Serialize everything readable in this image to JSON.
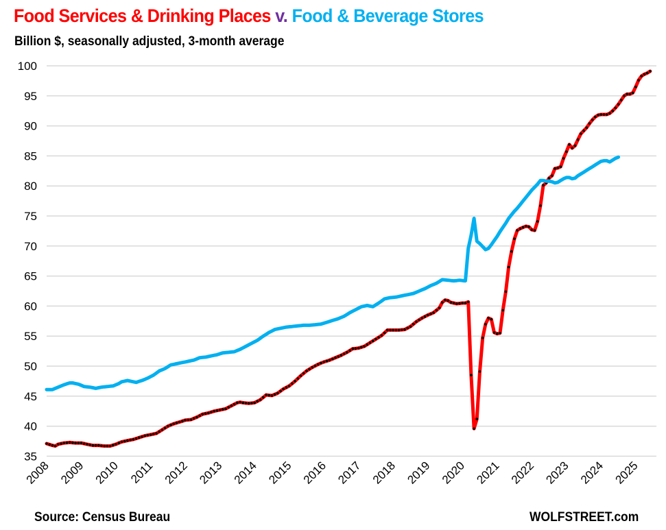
{
  "chart_data": {
    "type": "line",
    "title_parts": [
      {
        "text": "Food Services & Drinking Places",
        "color": "#ff0000"
      },
      {
        "text": " v. ",
        "color": "#7030a0"
      },
      {
        "text": "Food & Beverage Stores",
        "color": "#00b0f0"
      }
    ],
    "subtitle": "Billion $, seasonally adjusted, 3-month average",
    "xlabel": "",
    "ylabel": "",
    "ylim": [
      35,
      100
    ],
    "yticks": [
      35,
      40,
      45,
      50,
      55,
      60,
      65,
      70,
      75,
      80,
      85,
      90,
      95,
      100
    ],
    "xticks": [
      "2008",
      "2009",
      "2010",
      "2011",
      "2012",
      "2013",
      "2014",
      "2015",
      "2016",
      "2017",
      "2018",
      "2019",
      "2020",
      "2021",
      "2022",
      "2023",
      "2024",
      "2025"
    ],
    "x_start": "2008-01",
    "frequency": "monthly",
    "grid": true,
    "legend": "none (series identified by title colors)",
    "series": [
      {
        "name": "Food Services & Drinking Places",
        "color": "#ff0000",
        "marker_color": "#000000",
        "anchors": [
          [
            0,
            37.1
          ],
          [
            2,
            36.8
          ],
          [
            3,
            36.7
          ],
          [
            4,
            37.0
          ],
          [
            6,
            37.2
          ],
          [
            8,
            37.3
          ],
          [
            10,
            37.2
          ],
          [
            12,
            37.2
          ],
          [
            14,
            37.0
          ],
          [
            16,
            36.8
          ],
          [
            18,
            36.8
          ],
          [
            20,
            36.7
          ],
          [
            22,
            36.7
          ],
          [
            24,
            37.0
          ],
          [
            26,
            37.4
          ],
          [
            28,
            37.6
          ],
          [
            30,
            37.8
          ],
          [
            32,
            38.1
          ],
          [
            34,
            38.4
          ],
          [
            36,
            38.6
          ],
          [
            38,
            38.8
          ],
          [
            40,
            39.4
          ],
          [
            42,
            40.0
          ],
          [
            44,
            40.4
          ],
          [
            46,
            40.7
          ],
          [
            48,
            41.0
          ],
          [
            50,
            41.1
          ],
          [
            52,
            41.5
          ],
          [
            54,
            42.0
          ],
          [
            56,
            42.2
          ],
          [
            58,
            42.5
          ],
          [
            60,
            42.7
          ],
          [
            62,
            42.9
          ],
          [
            64,
            43.4
          ],
          [
            66,
            43.9
          ],
          [
            67,
            44.0
          ],
          [
            68,
            43.9
          ],
          [
            70,
            43.8
          ],
          [
            72,
            43.9
          ],
          [
            74,
            44.4
          ],
          [
            76,
            45.2
          ],
          [
            78,
            45.1
          ],
          [
            80,
            45.5
          ],
          [
            82,
            46.2
          ],
          [
            84,
            46.7
          ],
          [
            86,
            47.5
          ],
          [
            88,
            48.4
          ],
          [
            90,
            49.2
          ],
          [
            92,
            49.8
          ],
          [
            94,
            50.3
          ],
          [
            96,
            50.7
          ],
          [
            98,
            51.0
          ],
          [
            100,
            51.4
          ],
          [
            102,
            51.8
          ],
          [
            104,
            52.3
          ],
          [
            106,
            52.9
          ],
          [
            108,
            53.0
          ],
          [
            110,
            53.3
          ],
          [
            112,
            53.9
          ],
          [
            114,
            54.5
          ],
          [
            116,
            55.1
          ],
          [
            118,
            56.0
          ],
          [
            120,
            56.0
          ],
          [
            122,
            56.0
          ],
          [
            124,
            56.1
          ],
          [
            126,
            56.6
          ],
          [
            128,
            57.4
          ],
          [
            130,
            58.0
          ],
          [
            132,
            58.5
          ],
          [
            134,
            58.9
          ],
          [
            136,
            59.7
          ],
          [
            137,
            60.6
          ],
          [
            138,
            61.0
          ],
          [
            139,
            60.9
          ],
          [
            140,
            60.6
          ],
          [
            142,
            60.4
          ],
          [
            144,
            60.5
          ],
          [
            146,
            61.0
          ],
          [
            148,
            62.0
          ],
          [
            150,
            62.9
          ],
          [
            152,
            63.8
          ],
          [
            154,
            64.5
          ],
          [
            156,
            65.1
          ],
          [
            158,
            65.7
          ],
          [
            160,
            66.6
          ],
          [
            161,
            67.0
          ],
          [
            146.1,
            61.0
          ],
          [
            146.2,
            61.0
          ],
          [
            146.3,
            61.0
          ]
        ],
        "values_note": "monthly 3-month average readings; COVID segment listed explicitly",
        "covid": [
          [
            146,
            60.7
          ],
          [
            147,
            48.5
          ],
          [
            148,
            39.6
          ],
          [
            149,
            41.2
          ],
          [
            150,
            49.1
          ],
          [
            151,
            54.7
          ],
          [
            152,
            57.0
          ],
          [
            153,
            58.0
          ],
          [
            154,
            57.8
          ],
          [
            155,
            55.6
          ],
          [
            156,
            55.4
          ],
          [
            157,
            55.5
          ],
          [
            158,
            59.3
          ],
          [
            159,
            62.4
          ],
          [
            160,
            66.5
          ],
          [
            161,
            69.1
          ],
          [
            162,
            71.2
          ],
          [
            163,
            72.6
          ],
          [
            164,
            72.9
          ],
          [
            165,
            73.1
          ],
          [
            166,
            73.3
          ],
          [
            167,
            73.2
          ],
          [
            168,
            72.7
          ],
          [
            169,
            72.6
          ],
          [
            170,
            74.1
          ],
          [
            171,
            76.7
          ],
          [
            172,
            80.1
          ],
          [
            173,
            80.5
          ],
          [
            174,
            81.3
          ],
          [
            175,
            81.7
          ],
          [
            176,
            82.9
          ],
          [
            177,
            83.0
          ],
          [
            178,
            83.2
          ],
          [
            179,
            84.6
          ],
          [
            180,
            85.7
          ],
          [
            181,
            86.9
          ],
          [
            182,
            86.3
          ],
          [
            183,
            86.7
          ],
          [
            184,
            87.7
          ],
          [
            185,
            88.7
          ],
          [
            186,
            89.2
          ],
          [
            187,
            89.7
          ],
          [
            188,
            90.4
          ],
          [
            189,
            91.0
          ],
          [
            190,
            91.5
          ],
          [
            191,
            91.8
          ],
          [
            192,
            91.9
          ],
          [
            193,
            91.9
          ],
          [
            194,
            91.9
          ],
          [
            195,
            92.1
          ],
          [
            196,
            92.5
          ],
          [
            197,
            93.0
          ],
          [
            198,
            93.6
          ],
          [
            199,
            94.3
          ],
          [
            200,
            95.0
          ],
          [
            201,
            95.3
          ],
          [
            202,
            95.3
          ],
          [
            203,
            95.5
          ],
          [
            204,
            96.5
          ],
          [
            205,
            97.6
          ],
          [
            206,
            98.3
          ],
          [
            207,
            98.6
          ],
          [
            208,
            98.8
          ],
          [
            209,
            99.1
          ]
        ]
      },
      {
        "name": "Food & Beverage Stores",
        "color": "#00b0f0",
        "anchors": [
          [
            0,
            46.1
          ],
          [
            2,
            46.1
          ],
          [
            4,
            46.5
          ],
          [
            6,
            46.9
          ],
          [
            8,
            47.2
          ],
          [
            9,
            47.2
          ],
          [
            11,
            47.0
          ],
          [
            13,
            46.6
          ],
          [
            15,
            46.5
          ],
          [
            17,
            46.3
          ],
          [
            19,
            46.5
          ],
          [
            21,
            46.6
          ],
          [
            23,
            46.7
          ],
          [
            25,
            47.1
          ],
          [
            26,
            47.4
          ],
          [
            28,
            47.6
          ],
          [
            30,
            47.4
          ],
          [
            31,
            47.3
          ],
          [
            33,
            47.6
          ],
          [
            35,
            48.0
          ],
          [
            37,
            48.5
          ],
          [
            39,
            49.2
          ],
          [
            41,
            49.6
          ],
          [
            43,
            50.2
          ],
          [
            45,
            50.4
          ],
          [
            47,
            50.6
          ],
          [
            49,
            50.8
          ],
          [
            51,
            51.0
          ],
          [
            53,
            51.4
          ],
          [
            55,
            51.5
          ],
          [
            57,
            51.7
          ],
          [
            59,
            51.9
          ],
          [
            61,
            52.2
          ],
          [
            63,
            52.3
          ],
          [
            65,
            52.4
          ],
          [
            67,
            52.8
          ],
          [
            69,
            53.3
          ],
          [
            71,
            53.8
          ],
          [
            73,
            54.3
          ],
          [
            75,
            55.0
          ],
          [
            77,
            55.6
          ],
          [
            79,
            56.1
          ],
          [
            81,
            56.3
          ],
          [
            83,
            56.5
          ],
          [
            85,
            56.6
          ],
          [
            87,
            56.7
          ],
          [
            89,
            56.8
          ],
          [
            91,
            56.8
          ],
          [
            93,
            56.9
          ],
          [
            95,
            57.0
          ],
          [
            97,
            57.3
          ],
          [
            99,
            57.6
          ],
          [
            101,
            57.9
          ],
          [
            103,
            58.3
          ],
          [
            105,
            58.9
          ],
          [
            107,
            59.4
          ],
          [
            109,
            59.9
          ],
          [
            111,
            60.1
          ],
          [
            113,
            59.9
          ],
          [
            115,
            60.5
          ],
          [
            117,
            61.2
          ],
          [
            119,
            61.4
          ],
          [
            121,
            61.5
          ],
          [
            123,
            61.7
          ],
          [
            125,
            61.9
          ],
          [
            127,
            62.1
          ],
          [
            129,
            62.5
          ],
          [
            131,
            62.9
          ],
          [
            133,
            63.4
          ],
          [
            135,
            63.8
          ],
          [
            137,
            64.4
          ],
          [
            139,
            64.3
          ],
          [
            141,
            64.2
          ],
          [
            143,
            64.3
          ],
          [
            145,
            64.2
          ],
          [
            146,
            69.6
          ],
          [
            147,
            71.8
          ],
          [
            148,
            74.6
          ],
          [
            149,
            70.8
          ],
          [
            150,
            70.4
          ],
          [
            151,
            69.9
          ],
          [
            152,
            69.4
          ],
          [
            153,
            69.6
          ],
          [
            154,
            70.2
          ],
          [
            155,
            70.9
          ],
          [
            156,
            71.6
          ],
          [
            157,
            72.4
          ],
          [
            158,
            73.1
          ],
          [
            159,
            73.8
          ],
          [
            160,
            74.6
          ],
          [
            161,
            75.2
          ],
          [
            162,
            75.8
          ],
          [
            163,
            76.3
          ],
          [
            164,
            76.9
          ],
          [
            165,
            77.5
          ],
          [
            166,
            78.1
          ],
          [
            167,
            78.7
          ],
          [
            168,
            79.3
          ],
          [
            169,
            79.8
          ],
          [
            170,
            80.3
          ],
          [
            171,
            80.9
          ],
          [
            172,
            80.9
          ],
          [
            173,
            80.8
          ],
          [
            174,
            80.8
          ],
          [
            175,
            80.7
          ],
          [
            176,
            80.5
          ],
          [
            177,
            80.6
          ],
          [
            178,
            80.9
          ],
          [
            179,
            81.2
          ],
          [
            180,
            81.4
          ],
          [
            181,
            81.4
          ],
          [
            182,
            81.2
          ],
          [
            183,
            81.3
          ],
          [
            184,
            81.7
          ],
          [
            185,
            82.0
          ],
          [
            186,
            82.3
          ],
          [
            187,
            82.6
          ],
          [
            188,
            82.9
          ],
          [
            189,
            83.2
          ],
          [
            190,
            83.5
          ],
          [
            191,
            83.8
          ],
          [
            192,
            84.1
          ],
          [
            193,
            84.2
          ],
          [
            194,
            84.2
          ],
          [
            195,
            84.0
          ],
          [
            196,
            84.3
          ],
          [
            197,
            84.6
          ],
          [
            198,
            84.8
          ]
        ]
      }
    ],
    "annotations": []
  },
  "footer": {
    "source": "Source: Census Bureau",
    "brand": "WOLFSTREET.com"
  }
}
